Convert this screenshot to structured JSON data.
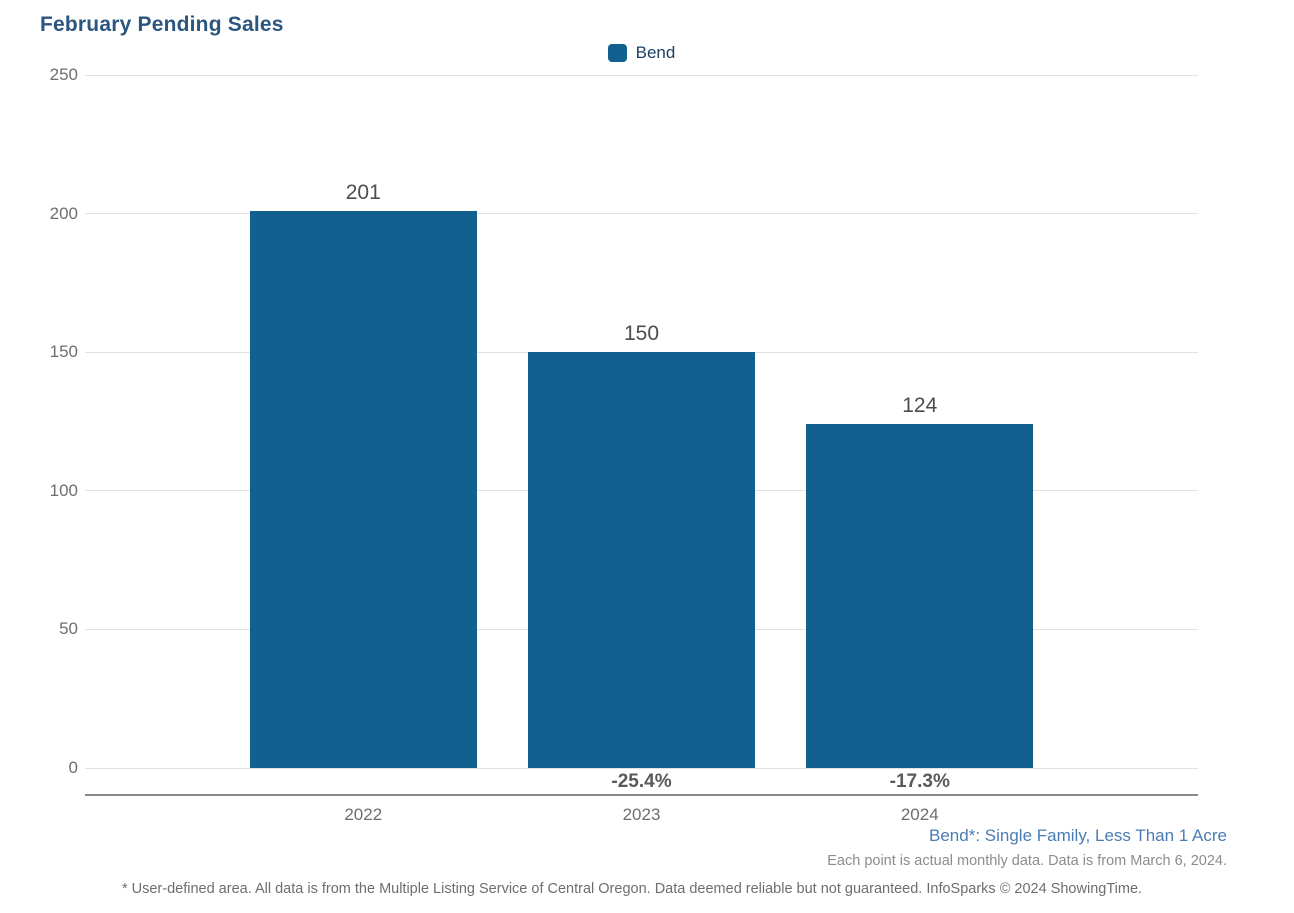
{
  "title": "February Pending Sales",
  "legend": {
    "items": [
      {
        "label": "Bend",
        "color": "#11608f"
      }
    ]
  },
  "chart_data": {
    "type": "bar",
    "title": "February Pending Sales",
    "series_name": "Bend",
    "categories": [
      "2022",
      "2023",
      "2024"
    ],
    "values": [
      201,
      150,
      124
    ],
    "value_labels": [
      "201",
      "150",
      "124"
    ],
    "pct_change": [
      null,
      "-25.4%",
      "-17.3%"
    ],
    "xlabel": "",
    "ylabel": "",
    "ylim": [
      0,
      250
    ],
    "yticks": [
      0,
      50,
      100,
      150,
      200,
      250
    ],
    "grid": true,
    "legend_position": "top-center",
    "bar_color": "#11608f"
  },
  "footnotes": {
    "series_definition": "Bend*: Single Family, Less Than 1 Acre",
    "data_note": "Each point is actual monthly data. Data is from March 6, 2024.",
    "disclaimer": "* User-defined area. All data is from the Multiple Listing Service of Central Oregon. Data deemed reliable but not guaranteed. InfoSparks © 2024 ShowingTime."
  },
  "colors": {
    "bar": "#11608f",
    "title_text": "#2a567f",
    "legend_text": "#1f3e63",
    "axis_tick_text": "#6e6e6e",
    "value_label_text": "#4d4d4d",
    "pct_label_text": "#595959",
    "definition_text": "#4a7cb4",
    "note_text": "#8c8c8c",
    "gridline": "#e2e2e2",
    "axis_line": "#8a8a8a"
  }
}
